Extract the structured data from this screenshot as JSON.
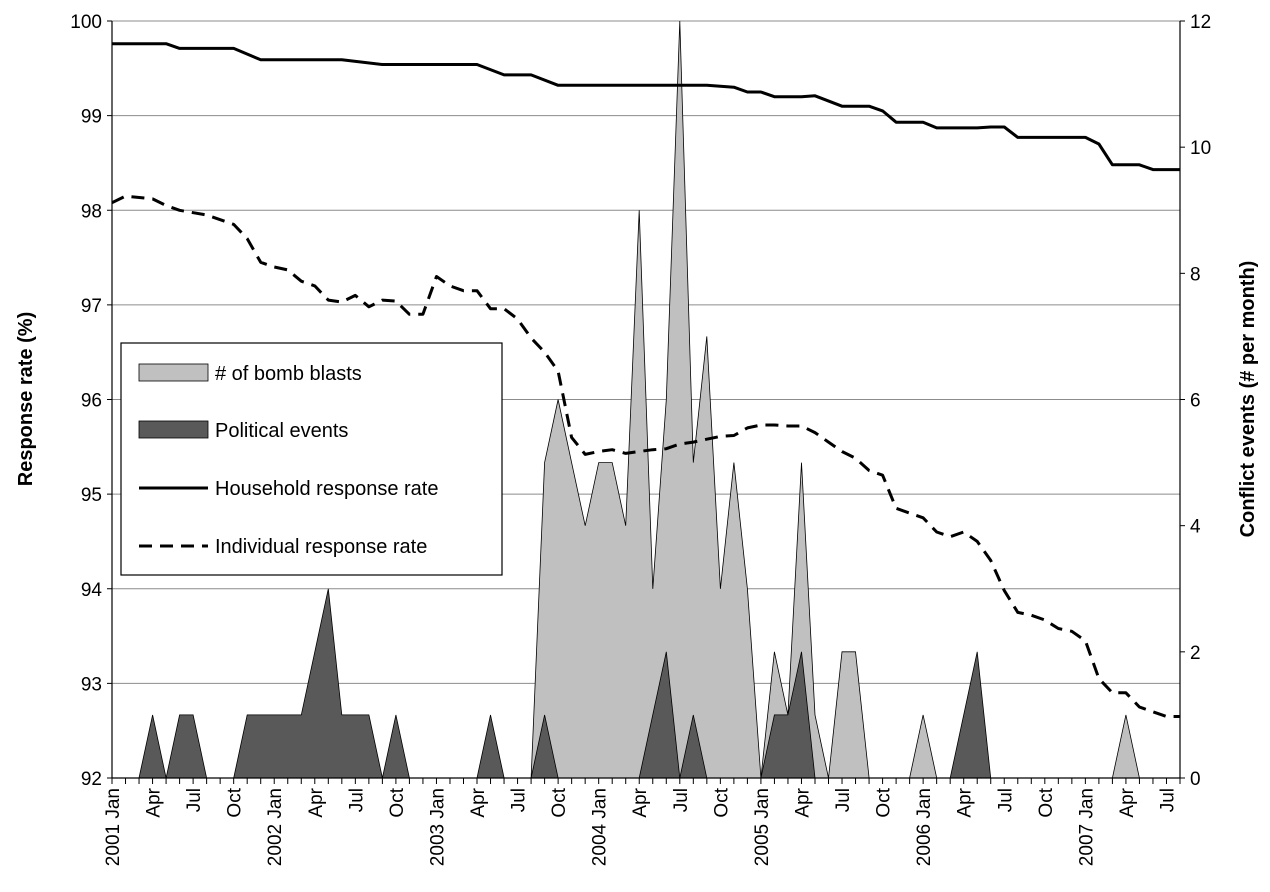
{
  "chart_data": {
    "type": "area",
    "left_axis": {
      "label": "Response rate (%)",
      "range": [
        92,
        100
      ],
      "ticks": [
        "92",
        "93",
        "94",
        "95",
        "96",
        "97",
        "98",
        "99",
        "100"
      ]
    },
    "right_axis": {
      "label": "Conflict events (# per month)",
      "range": [
        0,
        12
      ],
      "ticks": [
        "0",
        "2",
        "4",
        "6",
        "8",
        "10",
        "12"
      ]
    },
    "x_ticks": [
      {
        "m": 0,
        "label": "2001 Jan"
      },
      {
        "m": 3,
        "label": "Apr"
      },
      {
        "m": 6,
        "label": "Jul"
      },
      {
        "m": 9,
        "label": "Oct"
      },
      {
        "m": 12,
        "label": "2002 Jan"
      },
      {
        "m": 15,
        "label": "Apr"
      },
      {
        "m": 18,
        "label": "Jul"
      },
      {
        "m": 21,
        "label": "Oct"
      },
      {
        "m": 24,
        "label": "2003 Jan"
      },
      {
        "m": 27,
        "label": "Apr"
      },
      {
        "m": 30,
        "label": "Jul"
      },
      {
        "m": 33,
        "label": "Oct"
      },
      {
        "m": 36,
        "label": "2004 Jan"
      },
      {
        "m": 39,
        "label": "Apr"
      },
      {
        "m": 42,
        "label": "Jul"
      },
      {
        "m": 45,
        "label": "Oct"
      },
      {
        "m": 48,
        "label": "2005 Jan"
      },
      {
        "m": 51,
        "label": "Apr"
      },
      {
        "m": 54,
        "label": "Jul"
      },
      {
        "m": 57,
        "label": "Oct"
      },
      {
        "m": 60,
        "label": "2006 Jan"
      },
      {
        "m": 63,
        "label": "Apr"
      },
      {
        "m": 66,
        "label": "Jul"
      },
      {
        "m": 69,
        "label": "Oct"
      },
      {
        "m": 72,
        "label": "2007 Jan"
      },
      {
        "m": 75,
        "label": "Apr"
      },
      {
        "m": 78,
        "label": "Jul"
      }
    ],
    "grid": true,
    "legend_position": "middle-left",
    "series": [
      {
        "name": "# of bomb blasts",
        "axis": "right",
        "kind": "area",
        "color": "#c0c0c0",
        "points": [
          [
            0,
            0
          ],
          [
            31,
            0
          ],
          [
            32,
            5
          ],
          [
            33,
            6
          ],
          [
            34,
            5
          ],
          [
            35,
            4
          ],
          [
            36,
            5
          ],
          [
            37,
            5
          ],
          [
            38,
            4
          ],
          [
            39,
            9
          ],
          [
            40,
            3
          ],
          [
            41,
            6
          ],
          [
            42,
            12
          ],
          [
            43,
            5
          ],
          [
            44,
            7
          ],
          [
            45,
            3
          ],
          [
            46,
            5
          ],
          [
            47,
            3
          ],
          [
            48,
            0
          ],
          [
            49,
            2
          ],
          [
            50,
            1
          ],
          [
            51,
            5
          ],
          [
            52,
            1
          ],
          [
            53,
            0
          ],
          [
            54,
            2
          ],
          [
            55,
            2
          ],
          [
            56,
            0
          ],
          [
            59,
            0
          ],
          [
            60,
            1
          ],
          [
            61,
            0
          ],
          [
            63,
            0
          ],
          [
            64,
            1
          ],
          [
            65,
            0
          ],
          [
            74,
            0
          ],
          [
            75,
            1
          ],
          [
            76,
            0
          ],
          [
            79,
            0
          ]
        ]
      },
      {
        "name": "Political events",
        "axis": "right",
        "kind": "area",
        "color": "#595959",
        "points": [
          [
            0,
            0
          ],
          [
            2,
            0
          ],
          [
            3,
            1
          ],
          [
            4,
            0
          ],
          [
            5,
            1
          ],
          [
            6,
            1
          ],
          [
            7,
            0
          ],
          [
            9,
            0
          ],
          [
            10,
            1
          ],
          [
            11,
            1
          ],
          [
            14,
            1
          ],
          [
            16,
            3
          ],
          [
            17,
            1
          ],
          [
            19,
            1
          ],
          [
            20,
            0
          ],
          [
            21,
            1
          ],
          [
            22,
            0
          ],
          [
            27,
            0
          ],
          [
            28,
            1
          ],
          [
            29,
            0
          ],
          [
            31,
            0
          ],
          [
            32,
            1
          ],
          [
            33,
            0
          ],
          [
            39,
            0
          ],
          [
            41,
            2
          ],
          [
            42,
            0
          ],
          [
            43,
            1
          ],
          [
            44,
            0
          ],
          [
            48,
            0
          ],
          [
            49,
            1
          ],
          [
            50,
            1
          ],
          [
            51,
            2
          ],
          [
            52,
            0
          ],
          [
            62,
            0
          ],
          [
            64,
            2
          ],
          [
            65,
            0
          ],
          [
            79,
            0
          ]
        ]
      },
      {
        "name": "Household response rate",
        "axis": "left",
        "kind": "line",
        "dash": "solid",
        "color": "#000000",
        "points": [
          [
            0,
            99.76
          ],
          [
            4,
            99.76
          ],
          [
            5,
            99.71
          ],
          [
            9,
            99.71
          ],
          [
            11,
            99.59
          ],
          [
            17,
            99.59
          ],
          [
            20,
            99.54
          ],
          [
            27,
            99.54
          ],
          [
            29,
            99.43
          ],
          [
            31,
            99.43
          ],
          [
            33,
            99.32
          ],
          [
            44,
            99.32
          ],
          [
            46,
            99.3
          ],
          [
            47,
            99.25
          ],
          [
            48,
            99.25
          ],
          [
            49,
            99.2
          ],
          [
            51,
            99.2
          ],
          [
            52,
            99.21
          ],
          [
            54,
            99.1
          ],
          [
            56,
            99.1
          ],
          [
            57,
            99.05
          ],
          [
            58,
            98.93
          ],
          [
            60,
            98.93
          ],
          [
            61,
            98.87
          ],
          [
            64,
            98.87
          ],
          [
            65,
            98.88
          ],
          [
            66,
            98.88
          ],
          [
            67,
            98.77
          ],
          [
            72,
            98.77
          ],
          [
            73,
            98.7
          ],
          [
            74,
            98.48
          ],
          [
            76,
            98.48
          ],
          [
            77,
            98.43
          ],
          [
            79,
            98.43
          ]
        ]
      },
      {
        "name": "Individual response rate",
        "axis": "left",
        "kind": "line",
        "dash": "dashed",
        "color": "#000000",
        "points": [
          [
            0,
            98.08
          ],
          [
            1,
            98.15
          ],
          [
            3,
            98.12
          ],
          [
            4,
            98.05
          ],
          [
            5,
            98.0
          ],
          [
            7,
            97.95
          ],
          [
            9,
            97.85
          ],
          [
            10,
            97.7
          ],
          [
            11,
            97.45
          ],
          [
            12,
            97.4
          ],
          [
            13,
            97.37
          ],
          [
            14,
            97.25
          ],
          [
            15,
            97.2
          ],
          [
            16,
            97.05
          ],
          [
            17,
            97.03
          ],
          [
            18,
            97.1
          ],
          [
            19,
            96.98
          ],
          [
            20,
            97.05
          ],
          [
            21,
            97.04
          ],
          [
            22,
            96.9
          ],
          [
            23,
            96.9
          ],
          [
            24,
            97.3
          ],
          [
            25,
            97.2
          ],
          [
            26,
            97.15
          ],
          [
            27,
            97.15
          ],
          [
            28,
            96.96
          ],
          [
            29,
            96.96
          ],
          [
            30,
            96.85
          ],
          [
            31,
            96.65
          ],
          [
            32,
            96.5
          ],
          [
            33,
            96.3
          ],
          [
            34,
            95.6
          ],
          [
            35,
            95.42
          ],
          [
            36,
            95.45
          ],
          [
            37,
            95.47
          ],
          [
            38,
            95.43
          ],
          [
            39,
            95.45
          ],
          [
            40,
            95.47
          ],
          [
            41,
            95.48
          ],
          [
            42,
            95.53
          ],
          [
            43,
            95.55
          ],
          [
            44,
            95.58
          ],
          [
            45,
            95.61
          ],
          [
            46,
            95.62
          ],
          [
            47,
            95.7
          ],
          [
            48,
            95.73
          ],
          [
            49,
            95.73
          ],
          [
            50,
            95.72
          ],
          [
            51,
            95.72
          ],
          [
            52,
            95.65
          ],
          [
            53,
            95.55
          ],
          [
            54,
            95.45
          ],
          [
            55,
            95.38
          ],
          [
            56,
            95.25
          ],
          [
            57,
            95.2
          ],
          [
            58,
            94.85
          ],
          [
            59,
            94.8
          ],
          [
            60,
            94.75
          ],
          [
            61,
            94.6
          ],
          [
            62,
            94.55
          ],
          [
            63,
            94.6
          ],
          [
            64,
            94.5
          ],
          [
            65,
            94.3
          ],
          [
            66,
            93.98
          ],
          [
            67,
            93.75
          ],
          [
            68,
            93.72
          ],
          [
            69,
            93.67
          ],
          [
            70,
            93.58
          ],
          [
            71,
            93.55
          ],
          [
            72,
            93.45
          ],
          [
            73,
            93.05
          ],
          [
            74,
            92.9
          ],
          [
            75,
            92.9
          ],
          [
            76,
            92.75
          ],
          [
            77,
            92.7
          ],
          [
            78,
            92.65
          ],
          [
            79,
            92.65
          ]
        ]
      }
    ]
  }
}
